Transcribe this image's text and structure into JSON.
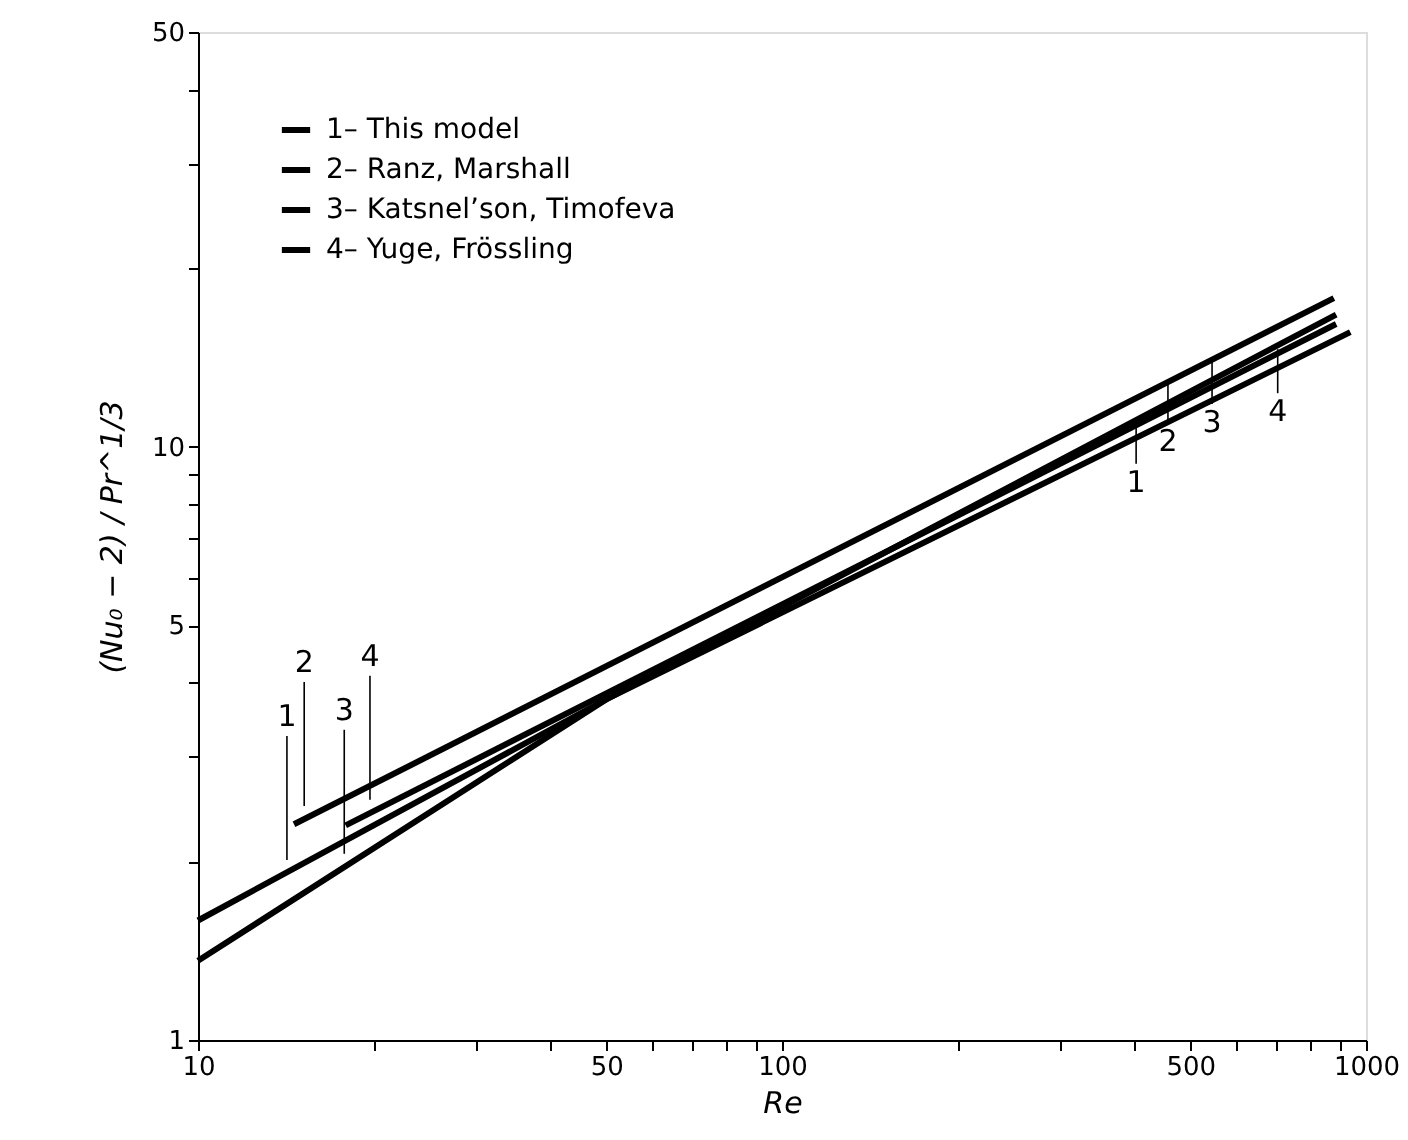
{
  "chart_data": {
    "type": "line",
    "xlabel": "Re",
    "ylabel": "(Nu₀ − 2) / Pr^1/3",
    "log": "xy",
    "xlim": [
      10,
      1000
    ],
    "ylim": [
      1,
      50
    ],
    "xticks": [
      10,
      {
        "value": 20,
        "label": null
      },
      {
        "value": 30,
        "label": null
      },
      {
        "value": 40,
        "label": null
      },
      50,
      {
        "value": 60,
        "label": null
      },
      {
        "value": 70,
        "label": null
      },
      {
        "value": 80,
        "label": null
      },
      {
        "value": 90,
        "label": null
      },
      100,
      {
        "value": 200,
        "label": null
      },
      {
        "value": 300,
        "label": null
      },
      {
        "value": 400,
        "label": null
      },
      500,
      {
        "value": 600,
        "label": null
      },
      {
        "value": 700,
        "label": null
      },
      {
        "value": 800,
        "label": null
      },
      {
        "value": 900,
        "label": null
      },
      1000
    ],
    "yticks": [
      1,
      {
        "value": 2,
        "label": null
      },
      {
        "value": 3,
        "label": null
      },
      {
        "value": 4,
        "label": null
      },
      5,
      {
        "value": 6,
        "label": null
      },
      {
        "value": 7,
        "label": null
      },
      {
        "value": 8,
        "label": null
      },
      {
        "value": 9,
        "label": null
      },
      10,
      {
        "value": 20,
        "label": null
      },
      {
        "value": 30,
        "label": null
      },
      {
        "value": 40,
        "label": null
      },
      50
    ],
    "grid": false,
    "legend": "top left",
    "marker": "none",
    "line_style": "solid",
    "series": [
      {
        "name": "1– This model",
        "color": "#000000",
        "x": [
          10,
          50,
          940
        ],
        "values": [
          1.59,
          3.75,
          15.6
        ]
      },
      {
        "name": "2– Ranz, Marshall",
        "color": "#000000",
        "x": [
          14.6,
          881
        ],
        "values": [
          2.31,
          17.8
        ]
      },
      {
        "name": "3– Katsnel’son, Timofeva",
        "color": "#000000",
        "x": [
          10,
          50,
          889
        ],
        "values": [
          1.36,
          3.75,
          16.7
        ]
      },
      {
        "name": "4– Yuge, Frössling",
        "color": "#000000",
        "x": [
          17.9,
          889
        ],
        "values": [
          2.3,
          16.1
        ]
      }
    ],
    "annotations": [
      {
        "text": "1",
        "x": 14.2,
        "y": 2.01
      },
      {
        "text": "2",
        "x": 15.2,
        "y": 2.48
      },
      {
        "text": "3",
        "x": 17.8,
        "y": 2.06
      },
      {
        "text": "4",
        "x": 19.7,
        "y": 2.54
      },
      {
        "text": "1",
        "x": 404,
        "y": 11.1
      },
      {
        "text": "2",
        "x": 458,
        "y": 13.0
      },
      {
        "text": "3",
        "x": 545,
        "y": 14.0
      },
      {
        "text": "4",
        "x": 706,
        "y": 14.6
      }
    ]
  }
}
